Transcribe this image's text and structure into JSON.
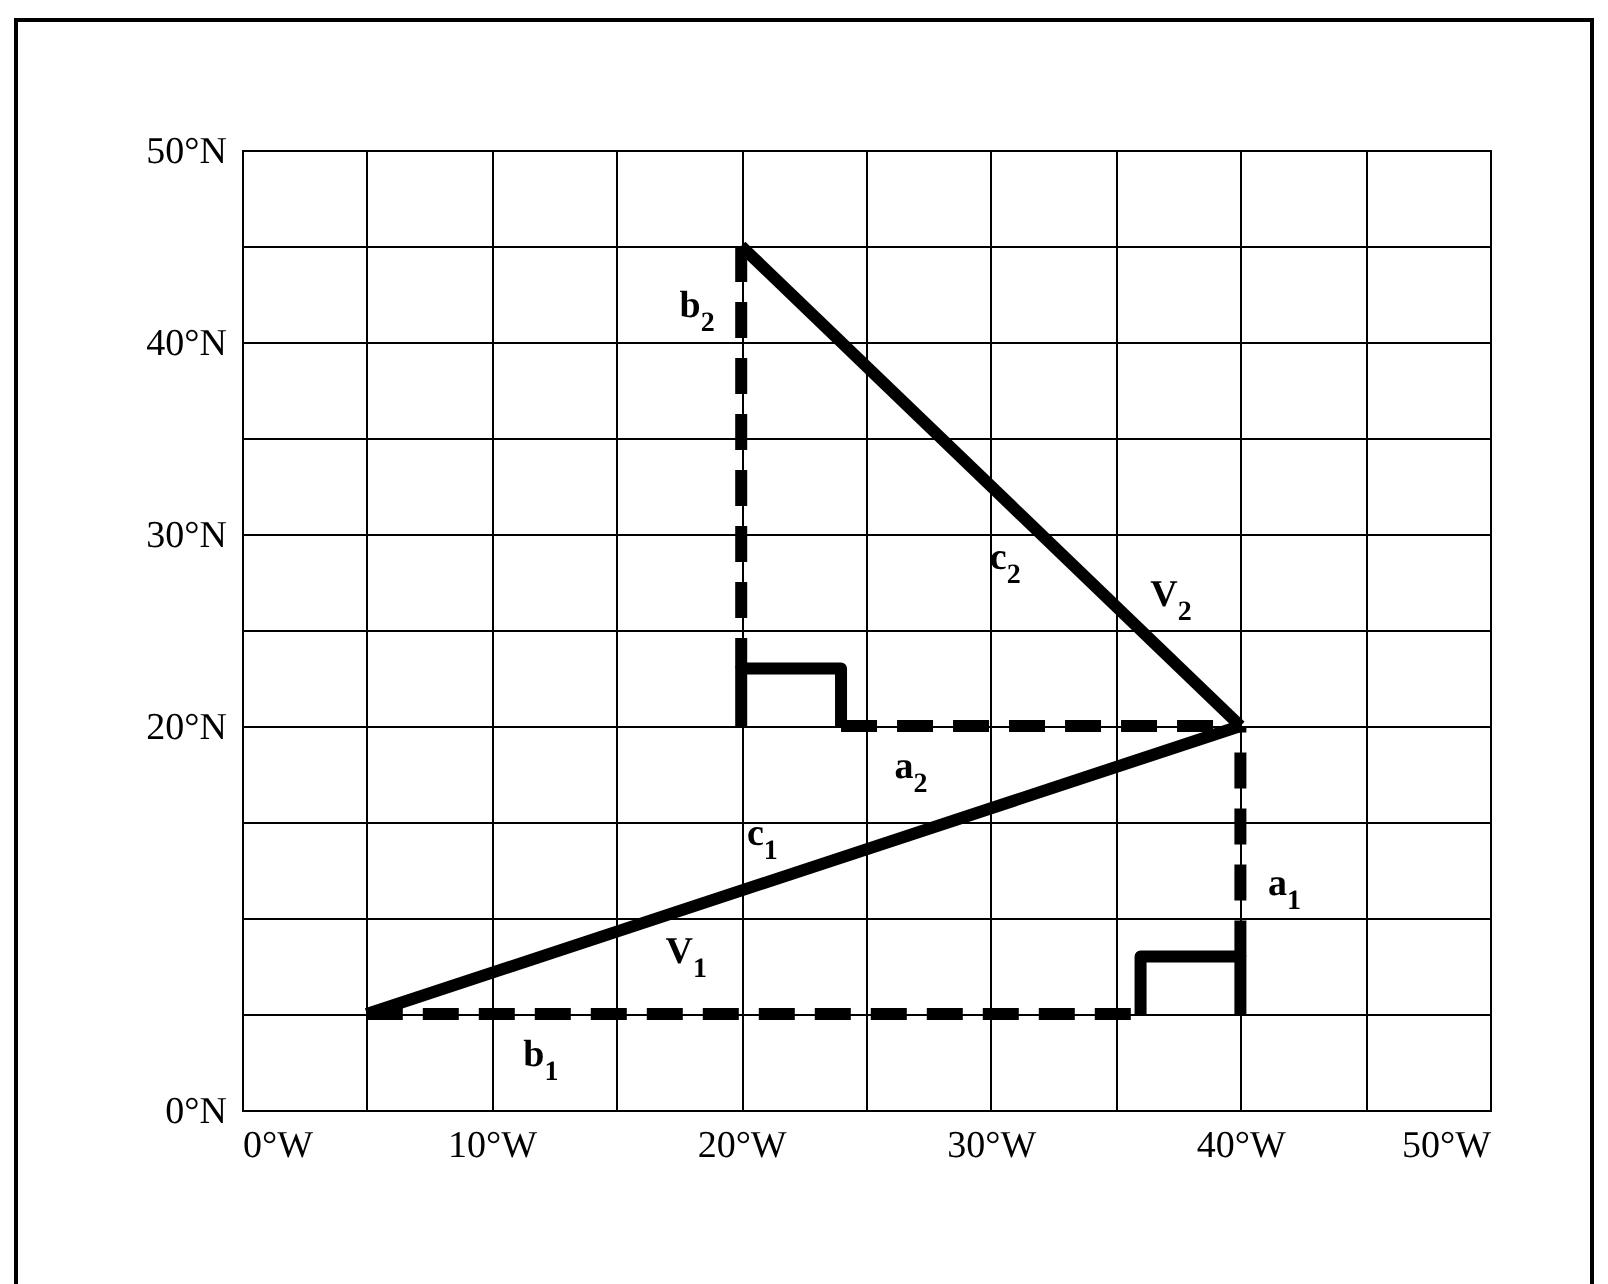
{
  "chart_data": {
    "type": "line",
    "xlim": [
      0,
      50
    ],
    "ylim": [
      0,
      50
    ],
    "xticks": [
      {
        "value": 0,
        "label": "0°W"
      },
      {
        "value": 5,
        "label": null
      },
      {
        "value": 10,
        "label": "10°W"
      },
      {
        "value": 15,
        "label": null
      },
      {
        "value": 20,
        "label": "20°W"
      },
      {
        "value": 25,
        "label": null
      },
      {
        "value": 30,
        "label": "30°W"
      },
      {
        "value": 35,
        "label": null
      },
      {
        "value": 40,
        "label": "40°W"
      },
      {
        "value": 45,
        "label": null
      },
      {
        "value": 50,
        "label": "50°W"
      }
    ],
    "yticks": [
      {
        "value": 0,
        "label": "0°N"
      },
      {
        "value": 5,
        "label": null
      },
      {
        "value": 10,
        "label": null
      },
      {
        "value": 15,
        "label": null
      },
      {
        "value": 20,
        "label": "20°N"
      },
      {
        "value": 25,
        "label": null
      },
      {
        "value": 30,
        "label": "30°N"
      },
      {
        "value": 35,
        "label": null
      },
      {
        "value": 40,
        "label": "40°N"
      },
      {
        "value": 45,
        "label": null
      },
      {
        "value": 50,
        "label": "50°N"
      }
    ],
    "grid": true,
    "marker": "none",
    "series": [
      {
        "name": "V$_{1}$",
        "color": "#000000",
        "line_style": "solid",
        "x": [
          5,
          40
        ],
        "values": [
          5,
          20
        ]
      },
      {
        "name": "V$_{2}$",
        "color": "#000000",
        "line_style": "solid",
        "x": [
          40,
          20
        ],
        "values": [
          20,
          45
        ]
      },
      {
        "name": "a$_{1}$",
        "color": "#000000",
        "line_style": "dashed",
        "x": [
          40,
          40
        ],
        "values": [
          8,
          20
        ]
      },
      {
        "name": "b$_{1}$",
        "color": "#000000",
        "line_style": "dashed",
        "x": [
          5,
          36
        ],
        "values": [
          5,
          5
        ]
      },
      {
        "name": "a$_{2}$",
        "color": "#000000",
        "line_style": "dashed",
        "x": [
          24,
          40
        ],
        "values": [
          20,
          20
        ]
      },
      {
        "name": "b$_{2}$",
        "color": "#000000",
        "line_style": "dashed",
        "x": [
          20,
          20
        ],
        "values": [
          45,
          23
        ]
      },
      {
        "color": "#000000",
        "line_style": "solid",
        "x": [
          36,
          36,
          40,
          40
        ],
        "values": [
          5,
          8,
          8,
          5
        ]
      },
      {
        "color": "#000000",
        "line_style": "solid",
        "x": [
          20,
          20,
          24,
          24
        ],
        "values": [
          20,
          23,
          23,
          20
        ]
      }
    ],
    "annotations": [
      {
        "text": "c$_{1}$",
        "x": 21.4,
        "y": 12.03
      },
      {
        "text": "c$_{2}$",
        "x": 31.8,
        "y": 30.25
      }
    ]
  }
}
